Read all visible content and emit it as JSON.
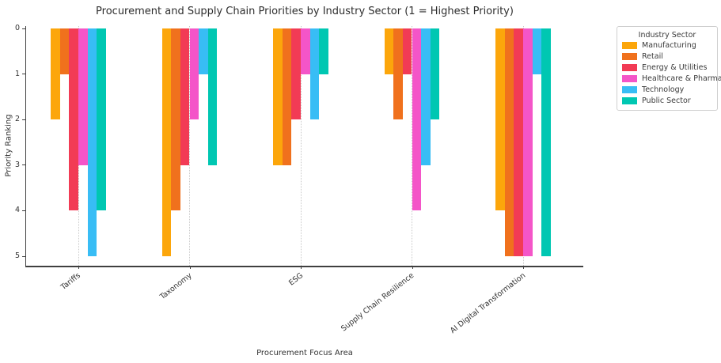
{
  "chart_data": {
    "type": "bar",
    "title": "Procurement and Supply Chain Priorities by Industry Sector (1 = Highest Priority)",
    "xlabel": "Procurement Focus Area",
    "ylabel": "Priority Ranking",
    "categories": [
      "Tariffs",
      "Taxonomy",
      "ESG",
      "Supply Chain Resilience",
      "AI Digital Transformation"
    ],
    "yticks": [
      0,
      1,
      2,
      3,
      4,
      5
    ],
    "ylim": [
      0,
      5
    ],
    "y_inverted": true,
    "bars_hang_from_zero": true,
    "grid": "vertical dotted gridlines at each category",
    "legend": {
      "title": "Industry Sector",
      "position": "outside upper right"
    },
    "series": [
      {
        "name": "Manufacturing",
        "color": "#FCA60B",
        "values": [
          2,
          5,
          3,
          1,
          4
        ]
      },
      {
        "name": "Retail",
        "color": "#F0711D",
        "values": [
          1,
          4,
          3,
          2,
          5
        ]
      },
      {
        "name": "Energy & Utilities",
        "color": "#F23B55",
        "values": [
          4,
          3,
          2,
          1,
          5
        ]
      },
      {
        "name": "Healthcare & Pharma",
        "color": "#F455C8",
        "values": [
          3,
          2,
          1,
          4,
          5
        ]
      },
      {
        "name": "Technology",
        "color": "#38BDF5",
        "values": [
          5,
          1,
          2,
          3,
          1
        ]
      },
      {
        "name": "Public Sector",
        "color": "#00C7B2",
        "values": [
          4,
          3,
          1,
          2,
          5
        ]
      }
    ]
  }
}
